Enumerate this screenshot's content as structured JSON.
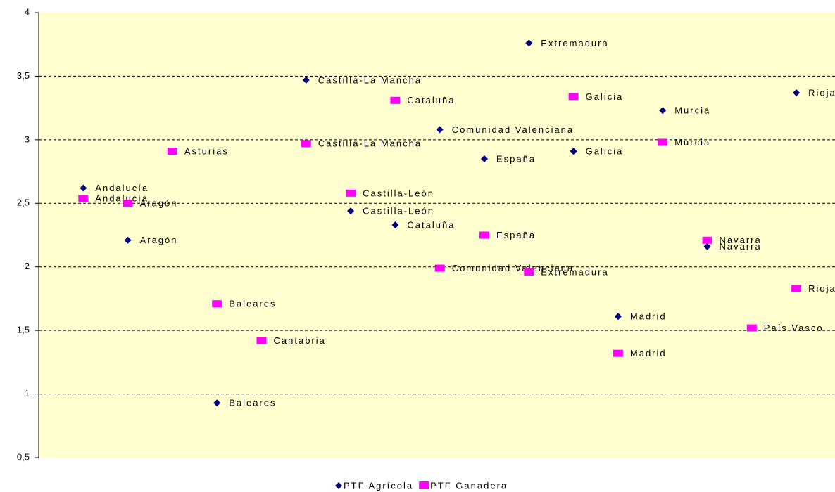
{
  "chart_data": {
    "type": "scatter",
    "categories": [
      "Andalucía",
      "Aragón",
      "Asturias",
      "Baleares",
      "Cantabria",
      "Castilla-La Mancha",
      "Castilla-León",
      "Cataluña",
      "Comunidad Valenciana",
      "España",
      "Extremadura",
      "Galicia",
      "Madrid",
      "Murcia",
      "Navarra",
      "País Vasco",
      "Rioja"
    ],
    "series": [
      {
        "name": "PTF Agrícola",
        "color": "#000080",
        "marker": "diamond",
        "values": [
          2.62,
          2.21,
          null,
          0.93,
          null,
          3.47,
          2.44,
          2.33,
          3.08,
          2.85,
          3.76,
          2.91,
          1.61,
          3.23,
          2.16,
          null,
          3.37
        ]
      },
      {
        "name": "PTF Ganadera",
        "color": "#ff00ff",
        "marker": "square",
        "values": [
          2.54,
          2.5,
          2.91,
          1.71,
          1.42,
          2.97,
          2.58,
          3.31,
          1.99,
          2.25,
          1.96,
          3.34,
          1.32,
          2.98,
          2.21,
          1.52,
          1.83
        ]
      }
    ],
    "ylim": [
      0.5,
      4
    ],
    "yticks": [
      {
        "value": 0.5,
        "label": "0,5"
      },
      1,
      {
        "value": 1.5,
        "label": "1,5"
      },
      2,
      {
        "value": 2.5,
        "label": "2,5"
      },
      3,
      {
        "value": 3.5,
        "label": "3,5"
      },
      4
    ],
    "grid": true,
    "plot_background": "#ffffd0",
    "legend": "bottom"
  }
}
